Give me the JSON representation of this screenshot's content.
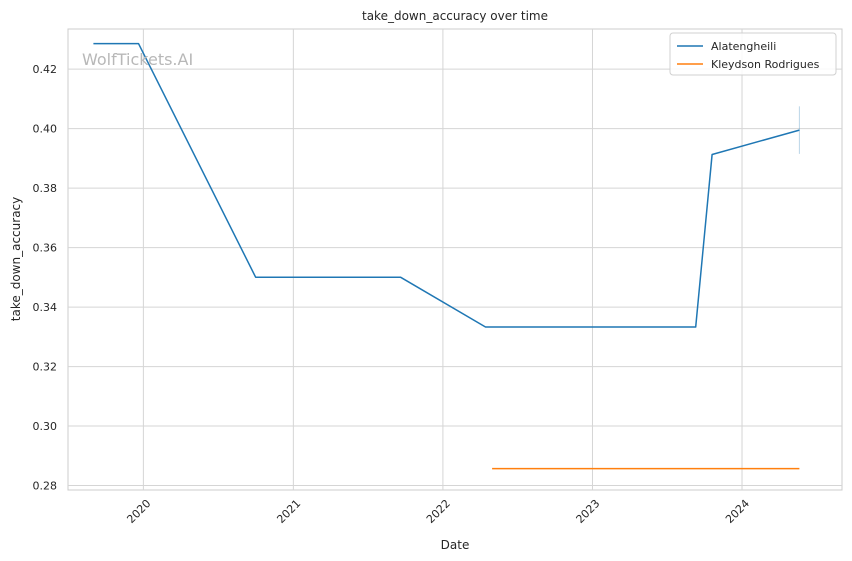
{
  "chart_data": {
    "type": "line",
    "title": "take_down_accuracy over time",
    "xlabel": "Date",
    "ylabel": "take_down_accuracy",
    "watermark": "WolfTickets.AI",
    "grid": true,
    "legend_position": "top-right",
    "x_ticks": [
      "2020",
      "2021",
      "2022",
      "2023",
      "2024"
    ],
    "y_ticks": [
      "0.28",
      "0.30",
      "0.32",
      "0.34",
      "0.36",
      "0.38",
      "0.40",
      "0.42"
    ],
    "xlim": [
      "2019-07-01",
      "2024-09-01"
    ],
    "ylim": [
      0.2785,
      0.4335
    ],
    "series": [
      {
        "name": "Alatengheili",
        "color": "#1f77b4",
        "points": [
          {
            "x": "2019-09-01",
            "y": 0.4286
          },
          {
            "x": "2019-12-20",
            "y": 0.4286
          },
          {
            "x": "2020-10-01",
            "y": 0.35
          },
          {
            "x": "2021-09-20",
            "y": 0.35
          },
          {
            "x": "2022-04-15",
            "y": 0.3333
          },
          {
            "x": "2023-09-10",
            "y": 0.3333
          },
          {
            "x": "2023-10-20",
            "y": 0.3913
          },
          {
            "x": "2024-05-20",
            "y": 0.3995
          }
        ],
        "error_band": {
          "x": "2024-05-20",
          "low": 0.3915,
          "high": 0.4075
        }
      },
      {
        "name": "Kleydson Rodrigues",
        "color": "#ff7f0e",
        "points": [
          {
            "x": "2022-05-01",
            "y": 0.2857
          },
          {
            "x": "2024-05-20",
            "y": 0.2857
          }
        ]
      }
    ]
  }
}
